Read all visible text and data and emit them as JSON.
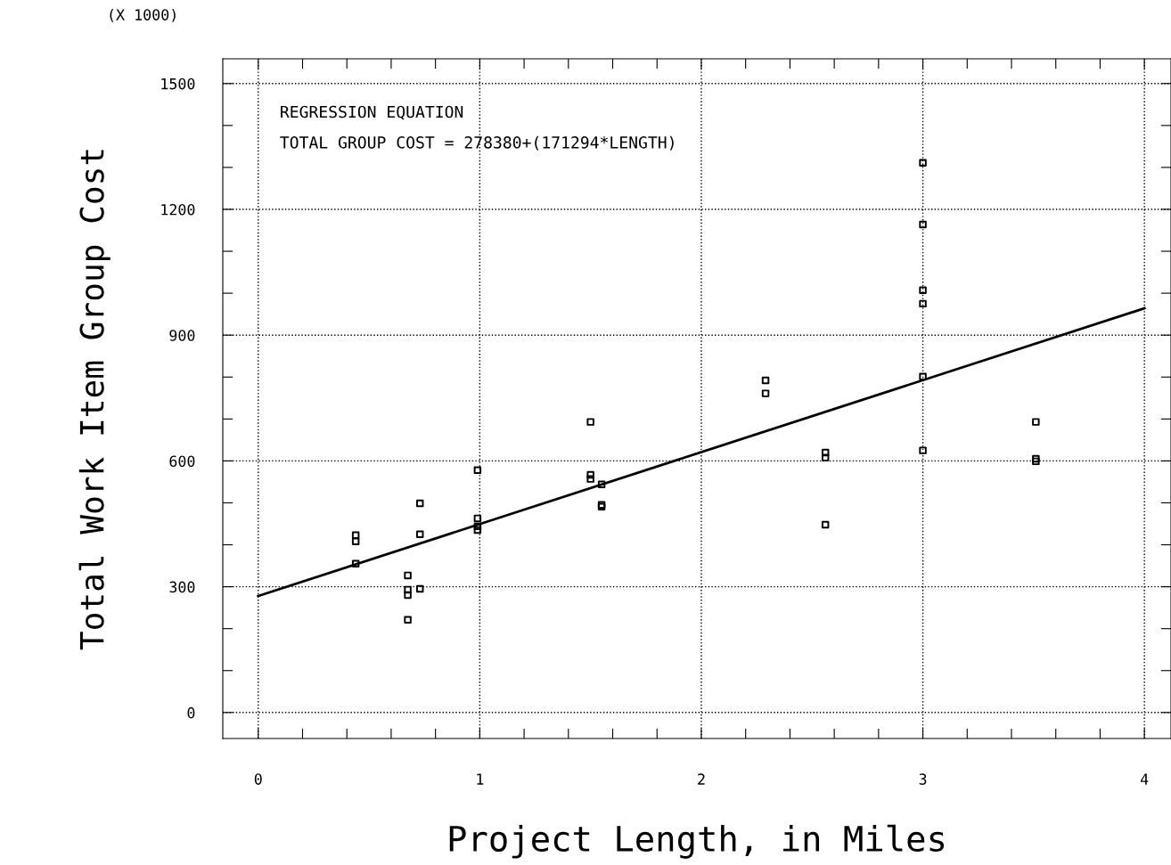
{
  "chart_data": {
    "type": "scatter",
    "xlabel": "Project Length, in Miles",
    "ylabel": "Total Work Item Group Cost",
    "annotations": [
      "(X 1000)",
      "REGRESSION EQUATION",
      "TOTAL GROUP COST = 278380+(171294*LENGTH)"
    ],
    "series": [
      {
        "color": "#000000",
        "marker": "square",
        "x": [
          0.44,
          0.44,
          0.44,
          0.675,
          0.675,
          0.675,
          0.675,
          0.73,
          0.73,
          0.73,
          0.99,
          0.99,
          0.99,
          0.99,
          1.5,
          1.5,
          1.5,
          1.55,
          1.55,
          1.55,
          2.29,
          2.29,
          2.56,
          2.56,
          2.56,
          3.0,
          3.0,
          3.0,
          3.0,
          3.0,
          3.0,
          3.51,
          3.51,
          3.51
        ],
        "values": [
          423,
          408,
          355,
          327,
          293,
          280,
          221,
          499,
          425,
          295,
          578,
          463,
          444,
          435,
          693,
          567,
          557,
          544,
          495,
          491,
          792,
          761,
          620,
          608,
          448,
          1311,
          1164,
          1007,
          975,
          801,
          625,
          693,
          605,
          599
        ]
      },
      {
        "type": "line",
        "color": "#000000",
        "marker": "none",
        "line_style": "solid",
        "x": [
          0,
          4
        ],
        "values": [
          278,
          964
        ]
      }
    ],
    "xlim": [
      -0.16,
      4.12
    ],
    "ylim": [
      -62,
      1559
    ],
    "xticks": [
      0,
      {
        "value": 0.2,
        "label": null
      },
      {
        "value": 0.4,
        "label": null
      },
      {
        "value": 0.6,
        "label": null
      },
      {
        "value": 0.8,
        "label": null
      },
      1,
      {
        "value": 1.2,
        "label": null
      },
      {
        "value": 1.4,
        "label": null
      },
      {
        "value": 1.6,
        "label": null
      },
      {
        "value": 1.8,
        "label": null
      },
      2,
      {
        "value": 2.2,
        "label": null
      },
      {
        "value": 2.4,
        "label": null
      },
      {
        "value": 2.6,
        "label": null
      },
      {
        "value": 2.8,
        "label": null
      },
      3,
      {
        "value": 3.2,
        "label": null
      },
      {
        "value": 3.4,
        "label": null
      },
      {
        "value": 3.6,
        "label": null
      },
      {
        "value": 3.8,
        "label": null
      },
      4
    ],
    "yticks": [
      0,
      {
        "value": 100,
        "label": null
      },
      {
        "value": 200,
        "label": null
      },
      300,
      {
        "value": 400,
        "label": null
      },
      {
        "value": 500,
        "label": null
      },
      600,
      {
        "value": 700,
        "label": null
      },
      {
        "value": 800,
        "label": null
      },
      900,
      {
        "value": 1000,
        "label": null
      },
      {
        "value": 1100,
        "label": null
      },
      1200,
      {
        "value": 1300,
        "label": null
      },
      {
        "value": 1400,
        "label": null
      },
      1500
    ],
    "grid": true,
    "legend": false
  }
}
